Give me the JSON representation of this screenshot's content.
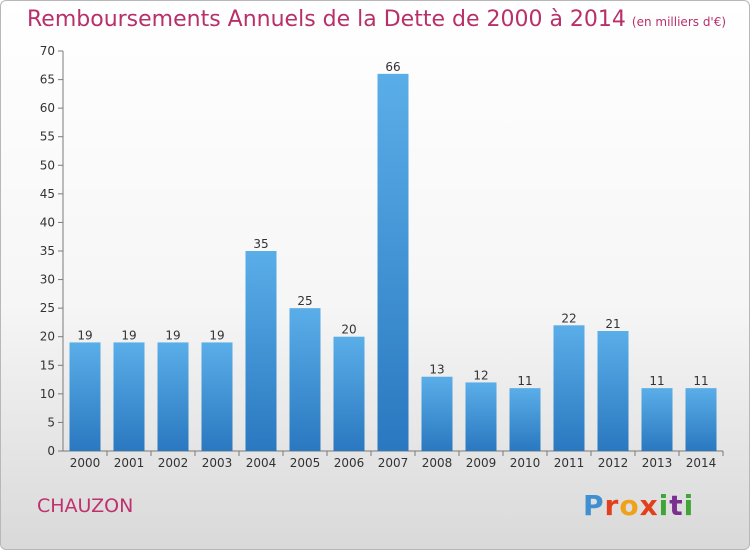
{
  "header": {
    "title": "Remboursements Annuels de la Dette de 2000 à 2014",
    "unit": "(en milliers d'€)"
  },
  "footer": {
    "commune": "CHAUZON",
    "logo_letters": [
      "P",
      "r",
      "o",
      "x",
      "i",
      "t",
      "i"
    ]
  },
  "colors": {
    "bar_top": "#5aaee8",
    "bar_bottom": "#2a78c0",
    "axis": "#7a7a7a",
    "title": "#b8306a"
  },
  "chart_data": {
    "type": "bar",
    "title": "Remboursements Annuels de la Dette de 2000 à 2014",
    "subtitle": "(en milliers d'€)",
    "xlabel": "",
    "ylabel": "",
    "ylim": [
      0,
      70
    ],
    "yticks": [
      0,
      5,
      10,
      15,
      20,
      25,
      30,
      35,
      40,
      45,
      50,
      55,
      60,
      65,
      70
    ],
    "grid": false,
    "categories": [
      "2000",
      "2001",
      "2002",
      "2003",
      "2004",
      "2005",
      "2006",
      "2007",
      "2008",
      "2009",
      "2010",
      "2011",
      "2012",
      "2013",
      "2014"
    ],
    "values": [
      19,
      19,
      19,
      19,
      35,
      25,
      20,
      66,
      13,
      12,
      11,
      22,
      21,
      11,
      11
    ]
  }
}
